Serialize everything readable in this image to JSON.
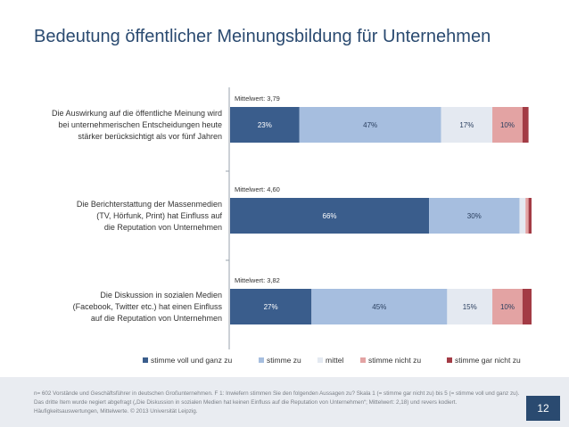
{
  "title": "Bedeutung öffentlicher Meinungsbildung für Unternehmen",
  "chart_data": {
    "type": "bar",
    "orientation": "horizontal",
    "stacked": true,
    "unit": "%",
    "title": "Bedeutung öffentlicher Meinungsbildung für Unternehmen",
    "categories": [
      [
        "Die Auswirkung auf die öffentliche Meinung wird",
        "bei unternehmerischen Entscheidungen heute",
        "stärker berücksichtigt als vor fünf Jahren"
      ],
      [
        "Die Berichterstattung der Massenmedien",
        "(TV, Hörfunk, Print) hat Einfluss auf",
        "die Reputation von Unternehmen"
      ],
      [
        "Die Diskussion in sozialen Medien",
        "(Facebook, Twitter etc.) hat einen Einfluss",
        "auf die Reputation von Unternehmen"
      ]
    ],
    "means": [
      "Mittelwert: 3,79",
      "Mittelwert: 4,60",
      "Mittelwert: 3,82"
    ],
    "series": [
      {
        "name": "stimme voll und ganz zu",
        "color": "#3a5d8c",
        "values": [
          23,
          66,
          27
        ],
        "labels": [
          "23%",
          "66%",
          "27%"
        ],
        "label_color": "#ffffff"
      },
      {
        "name": "stimme zu",
        "color": "#a6bedf",
        "values": [
          47,
          30,
          45
        ],
        "labels": [
          "47%",
          "30%",
          "45%"
        ],
        "label_color": "#2a3f5f"
      },
      {
        "name": "mittel",
        "color": "#e4e9f1",
        "values": [
          17,
          2,
          15
        ],
        "labels": [
          "17%",
          "",
          "15%"
        ],
        "label_color": "#2a3f5f"
      },
      {
        "name": "stimme nicht zu",
        "color": "#e3a3a3",
        "values": [
          10,
          1,
          10
        ],
        "labels": [
          "10%",
          "",
          "10%"
        ],
        "label_color": "#2a3f5f"
      },
      {
        "name": "stimme gar nicht zu",
        "color": "#a33b45",
        "values": [
          2,
          1,
          3
        ],
        "labels": [
          "",
          "",
          ""
        ],
        "label_color": "#ffffff"
      }
    ],
    "xlim": [
      0,
      100
    ]
  },
  "footnote": "n= 602 Vorstände und Geschäftsführer in deutschen Großunternehmen. F 1: Inwiefern stimmen Sie den folgenden Aussagen zu? Skala 1 (= stimme gar nicht zu) bis 5 (= stimme voll und ganz zu). Das dritte Item wurde negiert abgefragt („Die Diskussion in sozialen Medien hat keinen Einfluss auf die Reputation von Unternehmen“; Mittelwert: 2,18) und revers kodiert. Häufigkeitsauswertungen, Mittelwerte. © 2013 Universität Leipzig.",
  "page_number": "12"
}
